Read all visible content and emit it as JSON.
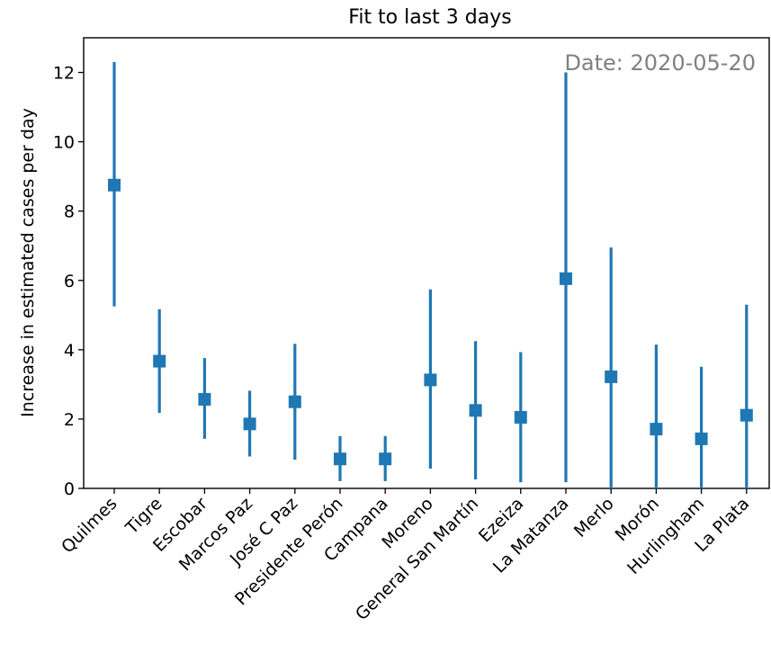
{
  "chart_data": {
    "type": "errorbar",
    "title": "Fit to last 3 days",
    "xlabel": "",
    "ylabel": "Increase in estimated cases per day",
    "annotation": "Date: 2020-05-20",
    "ylim": [
      0,
      13
    ],
    "yticks": [
      0,
      2,
      4,
      6,
      8,
      10,
      12
    ],
    "grid": false,
    "color": "#1f77b4",
    "annotation_color": "#808080",
    "categories": [
      "Quilmes",
      "Tigre",
      "Escobar",
      "Marcos Paz",
      "José C Paz",
      "Presidente Perón",
      "Campana",
      "Moreno",
      "General San Martín",
      "Ezeiza",
      "La Matanza",
      "Merlo",
      "Morón",
      "Hurlingham",
      "La Plata"
    ],
    "values": [
      8.75,
      3.67,
      2.57,
      1.86,
      2.5,
      0.85,
      0.85,
      3.13,
      2.25,
      2.05,
      6.05,
      3.22,
      1.71,
      1.43,
      2.11
    ],
    "lower": [
      5.25,
      2.18,
      1.43,
      0.92,
      0.83,
      0.21,
      0.21,
      0.57,
      0.26,
      0.18,
      0.18,
      0.0,
      0.0,
      0.0,
      0.0
    ],
    "upper": [
      12.3,
      5.17,
      3.76,
      2.82,
      4.17,
      1.51,
      1.51,
      5.74,
      4.25,
      3.93,
      12.0,
      6.95,
      4.15,
      3.51,
      5.3
    ]
  }
}
